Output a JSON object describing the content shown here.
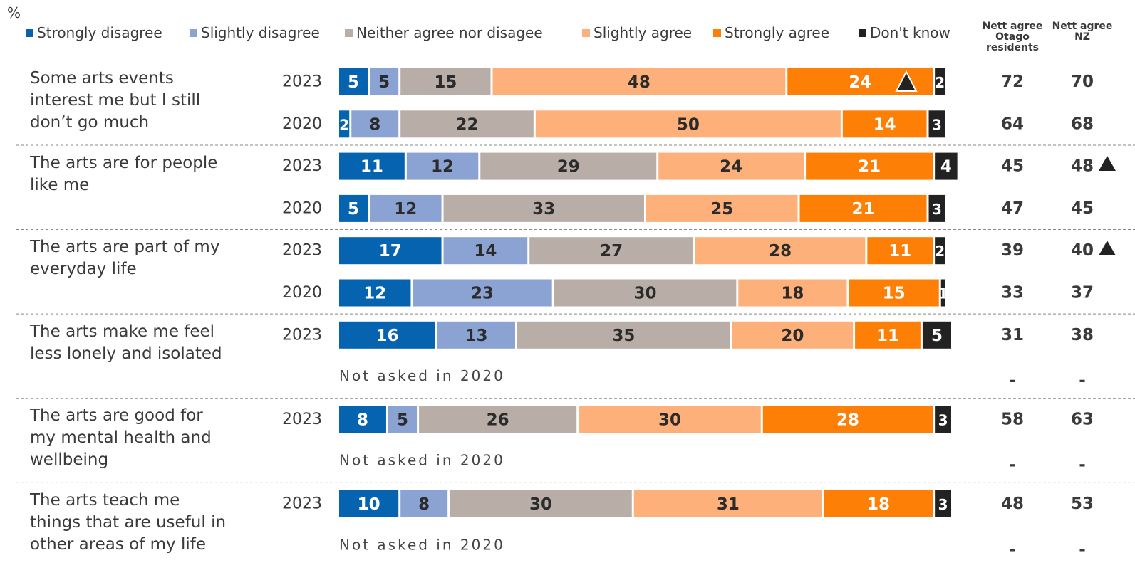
{
  "chart_data": {
    "type": "bar",
    "unit": "%",
    "categories": [
      "Some arts events interest me but I still don’t go much",
      "The arts are for people like me",
      "The arts are part of my everyday life",
      "The arts make me feel less lonely and isolated",
      "The arts are good for my mental health and wellbeing",
      "The arts teach me things that are useful in other areas of my life"
    ],
    "years": [
      [
        "2023",
        "2020"
      ],
      [
        "2023",
        "2020"
      ],
      [
        "2023",
        "2020"
      ],
      [
        "2023"
      ],
      [
        "2023"
      ],
      [
        "2023"
      ]
    ],
    "notes": [
      null,
      null,
      null,
      "Not asked in 2020",
      "Not asked in 2020",
      "Not asked in 2020"
    ],
    "series": [
      {
        "name": "Strongly disagree",
        "color": "#0563b0",
        "values": [
          [
            5,
            2
          ],
          [
            11,
            5
          ],
          [
            17,
            12
          ],
          [
            16
          ],
          [
            8
          ],
          [
            10
          ]
        ]
      },
      {
        "name": "Slightly disagree",
        "color": "#8aa3d3",
        "values": [
          [
            5,
            8
          ],
          [
            12,
            12
          ],
          [
            14,
            23
          ],
          [
            13
          ],
          [
            5
          ],
          [
            8
          ]
        ]
      },
      {
        "name": "Neither agree nor disagee",
        "color": "#b8aea7",
        "values": [
          [
            15,
            22
          ],
          [
            29,
            33
          ],
          [
            27,
            30
          ],
          [
            35
          ],
          [
            26
          ],
          [
            30
          ]
        ]
      },
      {
        "name": "Slightly agree",
        "color": "#fdb07a",
        "values": [
          [
            48,
            50
          ],
          [
            24,
            25
          ],
          [
            28,
            18
          ],
          [
            20
          ],
          [
            30
          ],
          [
            31
          ]
        ]
      },
      {
        "name": "Strongly agree",
        "color": "#fd7f06",
        "values": [
          [
            24,
            14
          ],
          [
            21,
            21
          ],
          [
            11,
            15
          ],
          [
            11
          ],
          [
            28
          ],
          [
            18
          ]
        ]
      },
      {
        "name": "Don't know",
        "color": "#222222",
        "values": [
          [
            2,
            3
          ],
          [
            4,
            3
          ],
          [
            2,
            1
          ],
          [
            5
          ],
          [
            3
          ],
          [
            3
          ]
        ]
      }
    ],
    "nett": [
      {
        "name": "Nett agree Otago residents",
        "values": [
          [
            72,
            64
          ],
          [
            45,
            47
          ],
          [
            39,
            33
          ],
          [
            31,
            null
          ],
          [
            58,
            null
          ],
          [
            48,
            null
          ]
        ]
      },
      {
        "name": "Nett agree NZ",
        "values": [
          [
            70,
            68
          ],
          [
            48,
            45
          ],
          [
            40,
            37
          ],
          [
            38,
            null
          ],
          [
            63,
            null
          ],
          [
            53,
            null
          ]
        ]
      }
    ],
    "missing_label": "-"
  }
}
